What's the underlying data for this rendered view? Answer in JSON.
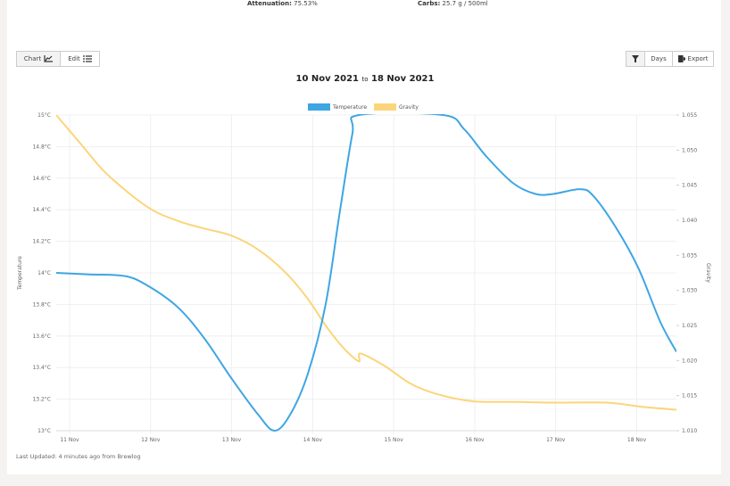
{
  "header": {
    "attenuation_label": "Attenuation:",
    "attenuation": "75.53%",
    "carbs_label": "Carbs:",
    "carbs": "25.7 g / 500ml"
  },
  "toolbar": {
    "chart": "Chart",
    "edit": "Edit",
    "days": "Days",
    "export": "Export"
  },
  "date_range": {
    "from": "10 Nov 2021",
    "separator": "to",
    "to": "18 Nov 2021"
  },
  "footer": {
    "last_updated": "Last Updated: 4 minutes ago from Brewlog"
  },
  "chart_data": {
    "type": "line",
    "ylabel": "Temperature",
    "y2label": "Gravity",
    "legend": "top",
    "grid": true,
    "xlim": [
      10.835,
      18.49
    ],
    "xticks": [
      {
        "value": 11,
        "label": "11 Nov"
      },
      {
        "value": 12,
        "label": "12 Nov"
      },
      {
        "value": 13,
        "label": "13 Nov"
      },
      {
        "value": 14,
        "label": "14 Nov"
      },
      {
        "value": 15,
        "label": "15 Nov"
      },
      {
        "value": 16,
        "label": "16 Nov"
      },
      {
        "value": 17,
        "label": "17 Nov"
      },
      {
        "value": 18,
        "label": "18 Nov"
      }
    ],
    "ylim": [
      13,
      15
    ],
    "yticks": [
      {
        "value": 13,
        "label": "13°C"
      },
      {
        "value": 13.2,
        "label": "13.2°C"
      },
      {
        "value": 13.4,
        "label": "13.4°C"
      },
      {
        "value": 13.6,
        "label": "13.6°C"
      },
      {
        "value": 13.8,
        "label": "13.8°C"
      },
      {
        "value": 14,
        "label": "14°C"
      },
      {
        "value": 14.2,
        "label": "14.2°C"
      },
      {
        "value": 14.4,
        "label": "14.4°C"
      },
      {
        "value": 14.6,
        "label": "14.6°C"
      },
      {
        "value": 14.8,
        "label": "14.8°C"
      },
      {
        "value": 15,
        "label": "15°C"
      }
    ],
    "y2lim": [
      1.01,
      1.055
    ],
    "y2ticks": [
      {
        "value": 1.01,
        "label": "1.010"
      },
      1.015,
      {
        "value": 1.02,
        "label": "1.020"
      },
      1.025,
      {
        "value": 1.03,
        "label": "1.030"
      },
      1.035,
      {
        "value": 1.04,
        "label": "1.040"
      },
      1.045,
      {
        "value": 1.05,
        "label": "1.050"
      },
      1.055
    ],
    "series": [
      {
        "name": "Temperature",
        "color": "#3ea6e3",
        "x": [
          10.835,
          11.24,
          11.68,
          11.96,
          12.34,
          12.67,
          13.0,
          13.33,
          13.53,
          13.72,
          13.94,
          14.16,
          14.33,
          14.49,
          14.57,
          15.61,
          15.87,
          16.14,
          16.47,
          16.75,
          16.97,
          17.3,
          17.46,
          17.74,
          18.02,
          18.29,
          18.49
        ],
        "values": [
          14.0,
          13.99,
          13.98,
          13.92,
          13.78,
          13.58,
          13.33,
          13.1,
          13.0,
          13.1,
          13.36,
          13.8,
          14.37,
          14.88,
          15.0,
          15.0,
          14.91,
          14.74,
          14.57,
          14.5,
          14.5,
          14.53,
          14.49,
          14.29,
          14.03,
          13.69,
          13.5
        ]
      },
      {
        "name": "Gravity",
        "color": "#fbd57a",
        "axis": "y2",
        "x": [
          10.835,
          11.13,
          11.46,
          11.96,
          12.34,
          12.67,
          13.0,
          13.33,
          13.66,
          13.94,
          14.16,
          14.38,
          14.57,
          14.59,
          14.88,
          15.21,
          15.54,
          15.98,
          16.53,
          16.97,
          17.63,
          18.07,
          18.49
        ],
        "values": [
          1.055,
          1.051,
          1.0466,
          1.0419,
          1.0399,
          1.0388,
          1.0378,
          1.0358,
          1.0326,
          1.0288,
          1.025,
          1.0218,
          1.0199,
          1.021,
          1.0193,
          1.0167,
          1.0152,
          1.0142,
          1.0141,
          1.014,
          1.014,
          1.0134,
          1.013
        ]
      }
    ]
  }
}
